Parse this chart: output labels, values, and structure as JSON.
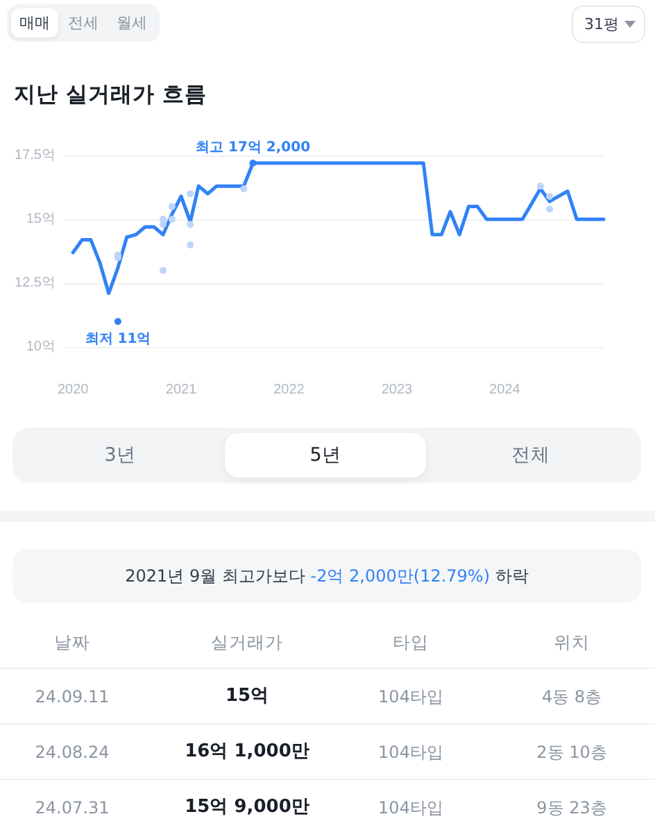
{
  "chart_data": {
    "type": "line",
    "title": "지난 실거래가 흐름",
    "series": [
      {
        "color": "#3182f6",
        "marker": "none",
        "x": [
          "2020-01",
          "2020-02",
          "2020-03",
          "2020-04",
          "2020-05",
          "2020-06",
          "2020-07",
          "2020-08",
          "2020-09",
          "2020-10",
          "2020-11",
          "2020-12",
          "2021-01",
          "2021-02",
          "2021-03",
          "2021-04",
          "2021-05",
          "2021-08",
          "2021-09",
          "2023-04",
          "2023-05",
          "2023-06",
          "2023-07",
          "2023-08",
          "2023-09",
          "2023-10",
          "2023-11",
          "2024-03",
          "2024-05",
          "2024-06",
          "2024-07",
          "2024-08",
          "2024-09",
          "2024-12"
        ],
        "values": [
          13.7,
          14.2,
          14.2,
          13.3,
          12.1,
          13.1,
          14.3,
          14.4,
          14.7,
          14.7,
          14.4,
          15.2,
          15.9,
          14.9,
          16.3,
          16.0,
          16.3,
          16.3,
          17.2,
          17.2,
          14.4,
          14.4,
          15.3,
          14.4,
          15.5,
          15.5,
          15.0,
          15.0,
          16.2,
          15.7,
          15.9,
          16.1,
          15.0,
          15.0
        ]
      },
      {
        "type": "scatter",
        "color": "#bdd5fb",
        "marker": "circle",
        "x": [
          "2020-06",
          "2020-06",
          "2020-11",
          "2020-11",
          "2020-11",
          "2020-12",
          "2020-12",
          "2021-02",
          "2021-02",
          "2021-02",
          "2021-08",
          "2024-05",
          "2024-06",
          "2024-06"
        ],
        "values": [
          13.6,
          13.5,
          13.0,
          15.0,
          14.8,
          15.0,
          15.5,
          16.0,
          14.8,
          14.0,
          16.2,
          16.3,
          15.9,
          15.4
        ]
      },
      {
        "type": "scatter",
        "color": "#3182f6",
        "marker": "circle",
        "x": [
          "2020-06",
          "2021-09"
        ],
        "values": [
          11,
          17.2
        ]
      }
    ],
    "xlim": [
      "2019-12",
      "2024-12"
    ],
    "xticks": [
      "2020",
      "2021",
      "2022",
      "2023",
      "2024"
    ],
    "ylim": [
      10,
      17.5
    ],
    "yticks": [
      {
        "value": 10,
        "label": "10억"
      },
      {
        "value": 12.5,
        "label": "12.5억"
      },
      {
        "value": 15,
        "label": "15억"
      },
      {
        "value": 17.5,
        "label": "17.5억"
      }
    ],
    "grid": "y",
    "annotations": [
      {
        "text": "최고 17억 2,000",
        "x": "2021-09",
        "y": 17.2
      },
      {
        "text": "최저 11억",
        "x": "2020-06",
        "y": 11
      },
      "매매",
      "전세",
      "월세",
      "31평",
      "3년",
      "5년",
      "전체",
      "2021년 9월 최고가보다",
      "-2억 2,000만(12.79%)",
      "하락",
      "날짜",
      "실거래가",
      "타입",
      "위치",
      "24.09.11",
      "15억",
      "104타입",
      "4동 8층",
      "24.08.24",
      "16억 1,000만",
      "104타입",
      "2동 10층",
      "24.07.31",
      "15억 9,000만",
      "104타입",
      "9동 23층"
    ]
  }
}
